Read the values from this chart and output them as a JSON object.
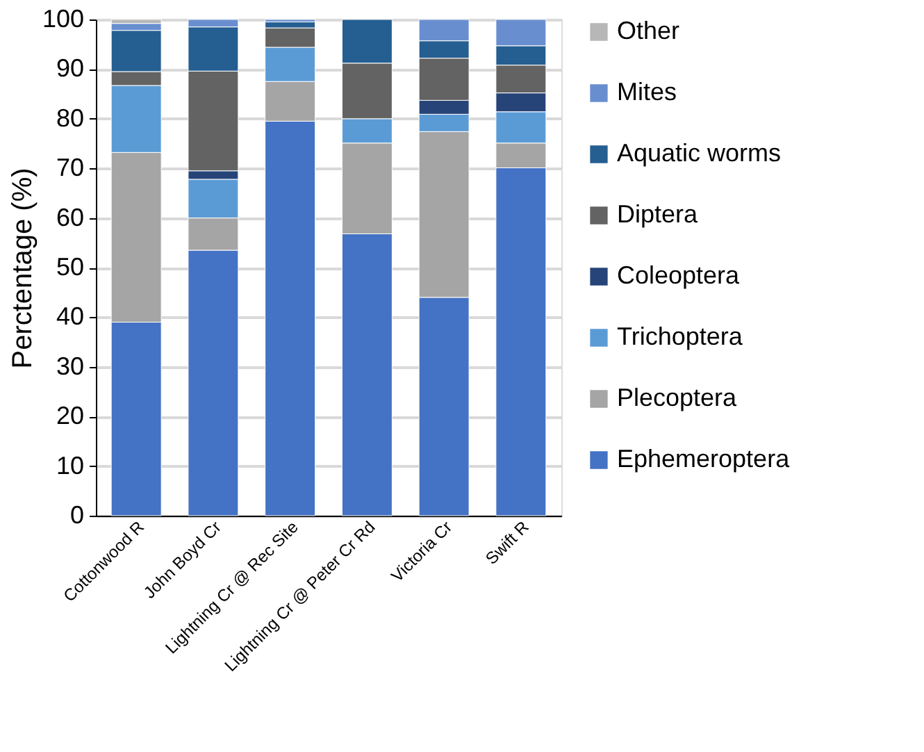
{
  "chart_data": {
    "type": "bar",
    "stacked": true,
    "ylabel": "Perctentage (%)",
    "categories": [
      "Cottonwood R",
      "John Boyd Cr",
      "Lightning Cr @ Rec Site",
      "Lightning Cr @ Peter Cr Rd",
      "Victoria Cr",
      "Swift R"
    ],
    "series": [
      {
        "name": "Ephemeroptera",
        "color": "#4472c4",
        "values": [
          39,
          53.5,
          79.5,
          56.8,
          44,
          70.1
        ]
      },
      {
        "name": "Plecoptera",
        "color": "#a5a5a5",
        "values": [
          34.2,
          6.5,
          8,
          18.3,
          33.4,
          5
        ]
      },
      {
        "name": "Trichoptera",
        "color": "#5b9bd5",
        "values": [
          13.5,
          7.8,
          6.9,
          4.9,
          3.5,
          6.3
        ]
      },
      {
        "name": "Coleoptera",
        "color": "#264478",
        "values": [
          null,
          1.7,
          null,
          null,
          2.8,
          3.8
        ]
      },
      {
        "name": "Diptera",
        "color": "#636363",
        "values": [
          2.8,
          20.1,
          3.9,
          11.2,
          8.5,
          5.6
        ]
      },
      {
        "name": "Aquatic worms",
        "color": "#255e91",
        "values": [
          8.3,
          8.9,
          1.2,
          8.8,
          3.5,
          3.9
        ]
      },
      {
        "name": "Mites",
        "color": "#698ed0",
        "values": [
          1.4,
          1.5,
          0.5,
          null,
          4.3,
          5.3
        ]
      },
      {
        "name": "Other",
        "color": "#b7b7b7",
        "values": [
          0.8,
          null,
          null,
          null,
          null,
          null
        ]
      }
    ],
    "ylim": [
      0,
      100
    ],
    "yticks": [
      0,
      10,
      20,
      30,
      40,
      50,
      60,
      70,
      80,
      90,
      100
    ],
    "grid": "y",
    "legend": "right"
  }
}
